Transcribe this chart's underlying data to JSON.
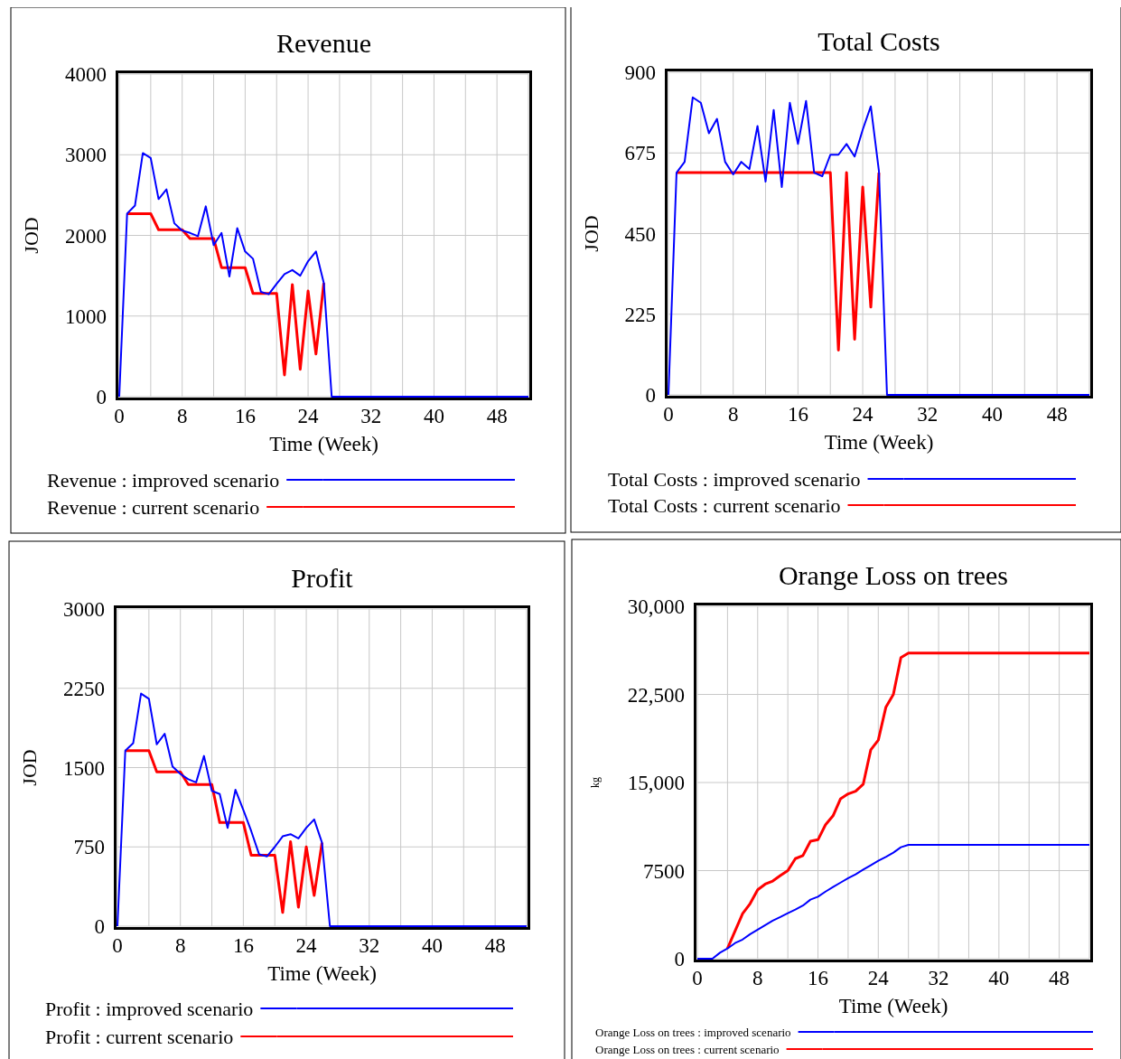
{
  "chart_data": [
    {
      "type": "line",
      "title": "Revenue",
      "xlabel": "Time (Week)",
      "ylabel": "JOD",
      "x": [
        0,
        1,
        2,
        3,
        4,
        5,
        6,
        7,
        8,
        9,
        10,
        11,
        12,
        13,
        14,
        15,
        16,
        17,
        18,
        19,
        20,
        21,
        22,
        23,
        24,
        25,
        26,
        27,
        28,
        29,
        30,
        31,
        32,
        33,
        34,
        35,
        36,
        37,
        38,
        39,
        40,
        41,
        42,
        43,
        44,
        45,
        46,
        47,
        48,
        49,
        50,
        51,
        52
      ],
      "xlim": [
        0,
        52
      ],
      "xticks": [
        0,
        {
          "value": 4,
          "label": null
        },
        8,
        {
          "value": 12,
          "label": null
        },
        16,
        {
          "value": 20,
          "label": null
        },
        24,
        {
          "value": 28,
          "label": null
        },
        32,
        {
          "value": 36,
          "label": null
        },
        40,
        {
          "value": 44,
          "label": null
        },
        48,
        {
          "value": 52,
          "label": null
        }
      ],
      "ylim": [
        0,
        4000
      ],
      "yticks": [
        0,
        1000,
        2000,
        3000,
        4000
      ],
      "grid": true,
      "legend": "bottom",
      "series": [
        {
          "name": "Revenue : improved scenario",
          "color": "#0000ff",
          "values": [
            0,
            2270,
            2370,
            3020,
            2960,
            2450,
            2570,
            2150,
            2060,
            2030,
            1990,
            2360,
            1880,
            2030,
            1490,
            2090,
            1800,
            1710,
            1300,
            1270,
            1400,
            1520,
            1570,
            1500,
            1680,
            1800,
            1410,
            0,
            0,
            0,
            0,
            0,
            0,
            0,
            0,
            0,
            0,
            0,
            0,
            0,
            0,
            0,
            0,
            0,
            0,
            0,
            0,
            0,
            0,
            0,
            0,
            0,
            0
          ]
        },
        {
          "name": "Revenue : current scenario",
          "color": "#ff0000",
          "values": [
            null,
            2270,
            2270,
            2270,
            2270,
            2070,
            2070,
            2070,
            2070,
            1960,
            1960,
            1960,
            1960,
            1600,
            1600,
            1600,
            1600,
            1280,
            1280,
            1280,
            1280,
            270,
            1390,
            340,
            1310,
            530,
            1410,
            null,
            null,
            null,
            null,
            null,
            null,
            null,
            null,
            null,
            null,
            null,
            null,
            null,
            null,
            null,
            null,
            null,
            null,
            null,
            null,
            null,
            null,
            null,
            null,
            null,
            null
          ]
        }
      ]
    },
    {
      "type": "line",
      "title": "Total Costs",
      "xlabel": "Time (Week)",
      "ylabel": "JOD",
      "x": [
        0,
        1,
        2,
        3,
        4,
        5,
        6,
        7,
        8,
        9,
        10,
        11,
        12,
        13,
        14,
        15,
        16,
        17,
        18,
        19,
        20,
        21,
        22,
        23,
        24,
        25,
        26,
        27,
        28,
        29,
        30,
        31,
        32,
        33,
        34,
        35,
        36,
        37,
        38,
        39,
        40,
        41,
        42,
        43,
        44,
        45,
        46,
        47,
        48,
        49,
        50,
        51,
        52
      ],
      "xlim": [
        0,
        52
      ],
      "xticks": [
        0,
        {
          "value": 4,
          "label": null
        },
        8,
        {
          "value": 12,
          "label": null
        },
        16,
        {
          "value": 20,
          "label": null
        },
        24,
        {
          "value": 28,
          "label": null
        },
        32,
        {
          "value": 36,
          "label": null
        },
        40,
        {
          "value": 44,
          "label": null
        },
        48,
        {
          "value": 52,
          "label": null
        }
      ],
      "ylim": [
        0,
        900
      ],
      "yticks": [
        0,
        225,
        450,
        675,
        900
      ],
      "grid": true,
      "legend": "bottom",
      "series": [
        {
          "name": "Total Costs : improved scenario",
          "color": "#0000ff",
          "values": [
            0,
            620,
            650,
            830,
            815,
            730,
            770,
            650,
            615,
            650,
            630,
            750,
            595,
            795,
            580,
            815,
            700,
            820,
            620,
            610,
            670,
            670,
            700,
            665,
            740,
            805,
            625,
            0,
            0,
            0,
            0,
            0,
            0,
            0,
            0,
            0,
            0,
            0,
            0,
            0,
            0,
            0,
            0,
            0,
            0,
            0,
            0,
            0,
            0,
            0,
            0,
            0,
            0
          ]
        },
        {
          "name": "Total Costs : current scenario",
          "color": "#ff0000",
          "values": [
            null,
            620,
            620,
            620,
            620,
            620,
            620,
            620,
            620,
            620,
            620,
            620,
            620,
            620,
            620,
            620,
            620,
            620,
            620,
            620,
            620,
            125,
            620,
            155,
            580,
            245,
            620,
            null,
            null,
            null,
            null,
            null,
            null,
            null,
            null,
            null,
            null,
            null,
            null,
            null,
            null,
            null,
            null,
            null,
            null,
            null,
            null,
            null,
            null,
            null,
            null,
            null,
            null
          ]
        }
      ]
    },
    {
      "type": "line",
      "title": "Profit",
      "xlabel": "Time (Week)",
      "ylabel": "JOD",
      "x": [
        0,
        1,
        2,
        3,
        4,
        5,
        6,
        7,
        8,
        9,
        10,
        11,
        12,
        13,
        14,
        15,
        16,
        17,
        18,
        19,
        20,
        21,
        22,
        23,
        24,
        25,
        26,
        27,
        28,
        29,
        30,
        31,
        32,
        33,
        34,
        35,
        36,
        37,
        38,
        39,
        40,
        41,
        42,
        43,
        44,
        45,
        46,
        47,
        48,
        49,
        50,
        51,
        52
      ],
      "xlim": [
        0,
        52
      ],
      "xticks": [
        0,
        {
          "value": 4,
          "label": null
        },
        8,
        {
          "value": 12,
          "label": null
        },
        16,
        {
          "value": 20,
          "label": null
        },
        24,
        {
          "value": 28,
          "label": null
        },
        32,
        {
          "value": 36,
          "label": null
        },
        40,
        {
          "value": 44,
          "label": null
        },
        48,
        {
          "value": 52,
          "label": null
        }
      ],
      "ylim": [
        0,
        3000
      ],
      "yticks": [
        0,
        750,
        1500,
        2250,
        3000
      ],
      "grid": true,
      "legend": "bottom",
      "series": [
        {
          "name": "Profit : improved scenario",
          "color": "#0000ff",
          "values": [
            0,
            1660,
            1730,
            2200,
            2150,
            1720,
            1820,
            1510,
            1440,
            1390,
            1360,
            1610,
            1280,
            1250,
            930,
            1290,
            1100,
            900,
            680,
            660,
            750,
            850,
            870,
            830,
            930,
            1010,
            790,
            0,
            0,
            0,
            0,
            0,
            0,
            0,
            0,
            0,
            0,
            0,
            0,
            0,
            0,
            0,
            0,
            0,
            0,
            0,
            0,
            0,
            0,
            0,
            0,
            0,
            0
          ]
        },
        {
          "name": "Profit : current scenario",
          "color": "#ff0000",
          "values": [
            null,
            1660,
            1660,
            1660,
            1660,
            1460,
            1460,
            1460,
            1460,
            1340,
            1340,
            1340,
            1340,
            980,
            980,
            980,
            980,
            670,
            670,
            670,
            670,
            130,
            800,
            180,
            750,
            290,
            790,
            null,
            null,
            null,
            null,
            null,
            null,
            null,
            null,
            null,
            null,
            null,
            null,
            null,
            null,
            null,
            null,
            null,
            null,
            null,
            null,
            null,
            null,
            null,
            null,
            null,
            null
          ]
        }
      ]
    },
    {
      "type": "line",
      "title": "Orange Loss on trees",
      "xlabel": "Time (Week)",
      "ylabel": "kg",
      "x": [
        0,
        1,
        2,
        3,
        4,
        5,
        6,
        7,
        8,
        9,
        10,
        11,
        12,
        13,
        14,
        15,
        16,
        17,
        18,
        19,
        20,
        21,
        22,
        23,
        24,
        25,
        26,
        27,
        28,
        29,
        30,
        31,
        32,
        33,
        34,
        35,
        36,
        37,
        38,
        39,
        40,
        41,
        42,
        43,
        44,
        45,
        46,
        47,
        48,
        49,
        50,
        51,
        52
      ],
      "xlim": [
        0,
        52
      ],
      "xticks": [
        0,
        {
          "value": 4,
          "label": null
        },
        8,
        {
          "value": 12,
          "label": null
        },
        16,
        {
          "value": 20,
          "label": null
        },
        24,
        {
          "value": 28,
          "label": null
        },
        32,
        {
          "value": 36,
          "label": null
        },
        40,
        {
          "value": 44,
          "label": null
        },
        48,
        {
          "value": 52,
          "label": null
        }
      ],
      "ylim": [
        0,
        30000
      ],
      "yticks": [
        0,
        7500,
        {
          "value": 15000,
          "label": "15,000"
        },
        {
          "value": 22500,
          "label": "22,500"
        },
        {
          "value": 30000,
          "label": "30,000"
        }
      ],
      "grid": true,
      "legend": "bottom",
      "series": [
        {
          "name": "Orange Loss on trees : improved scenario",
          "color": "#0000ff",
          "values": [
            0,
            0,
            0,
            510,
            870,
            1330,
            1630,
            2090,
            2470,
            2860,
            3240,
            3550,
            3880,
            4180,
            4520,
            5030,
            5280,
            5710,
            6100,
            6480,
            6860,
            7190,
            7580,
            7960,
            8340,
            8670,
            9030,
            9490,
            9690,
            9690,
            9690,
            9690,
            9690,
            9690,
            9690,
            9690,
            9690,
            9690,
            9690,
            9690,
            9690,
            9690,
            9690,
            9690,
            9690,
            9690,
            9690,
            9690,
            9690,
            9690,
            9690,
            9690,
            9690
          ]
        },
        {
          "name": "Orange Loss on trees : current scenario",
          "color": "#ff0000",
          "values": [
            null,
            null,
            null,
            null,
            870,
            2350,
            3830,
            4690,
            5870,
            6350,
            6610,
            7070,
            7500,
            8520,
            8780,
            10000,
            10130,
            11400,
            12170,
            13620,
            14030,
            14260,
            14850,
            17780,
            18600,
            21400,
            22500,
            25640,
            26020,
            26020,
            26020,
            26020,
            26020,
            26020,
            26020,
            26020,
            26020,
            26020,
            26020,
            26020,
            26020,
            26020,
            26020,
            26020,
            26020,
            26020,
            26020,
            26020,
            26020,
            26020,
            26020,
            26020,
            26020
          ]
        }
      ]
    }
  ]
}
